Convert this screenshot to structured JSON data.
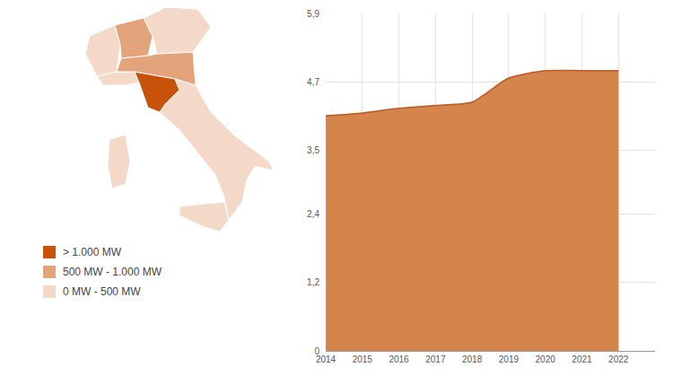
{
  "chart_data": {
    "type": "area",
    "x": [
      2014,
      2015,
      2016,
      2017,
      2018,
      2019,
      2020,
      2021,
      2022
    ],
    "values": [
      4.11,
      4.16,
      4.24,
      4.29,
      4.35,
      4.77,
      4.9,
      4.9,
      4.9
    ],
    "color": "#d5844b",
    "xlim": [
      2014,
      2023
    ],
    "xticks": [
      2014,
      2015,
      2016,
      2017,
      2018,
      2019,
      2020,
      2021,
      2022
    ],
    "ylim": [
      0,
      5.9
    ],
    "yticks": [
      0,
      {
        "value": 1.2,
        "label": "1,2"
      },
      {
        "value": 2.4,
        "label": "2,4"
      },
      {
        "value": 3.5,
        "label": "3,5"
      },
      {
        "value": 4.7,
        "label": "4,7"
      },
      {
        "value": 5.9,
        "label": "5,9"
      }
    ],
    "grid": true
  },
  "map": {
    "legend": [
      {
        "label": "> 1.000 MW",
        "color": "#c8520a"
      },
      {
        "label": "500 MW - 1.000 MW",
        "color": "#e3a47c"
      },
      {
        "label": "0 MW - 500 MW",
        "color": "#f4d9c8"
      }
    ]
  }
}
